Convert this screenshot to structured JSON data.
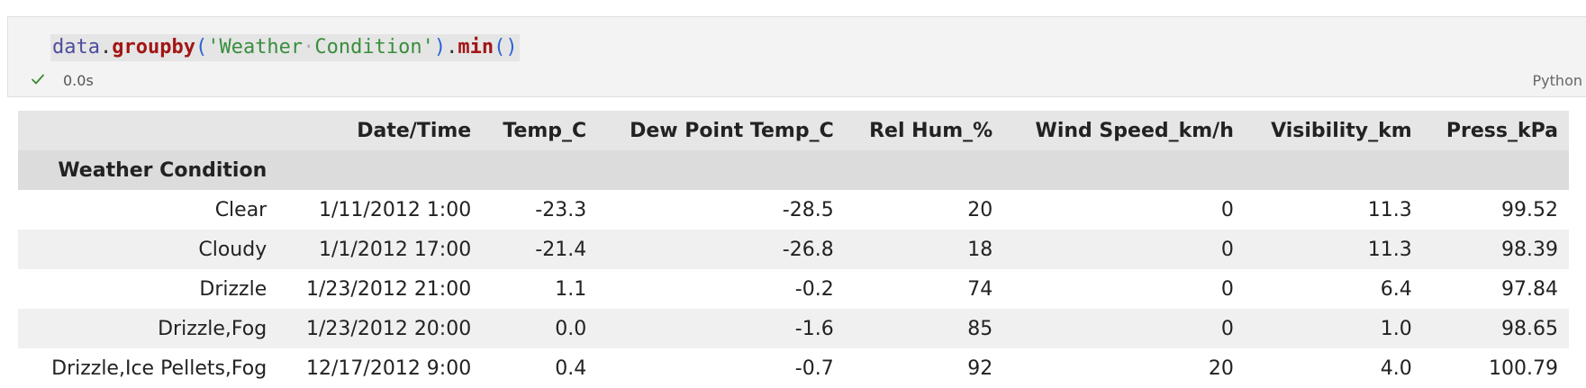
{
  "cell": {
    "code": {
      "var": "data",
      "dot1": ".",
      "method1": "groupby",
      "open1": "(",
      "string_open": "'",
      "string_word1": "Weather",
      "string_space": "·",
      "string_word2": "Condition",
      "string_close": "'",
      "close1": ")",
      "dot2": ".",
      "method2": "min",
      "parens2": "()"
    },
    "status": "success",
    "exec_time": "0.0s",
    "language": "Python"
  },
  "table": {
    "index_name": "Weather Condition",
    "columns": [
      "Date/Time",
      "Temp_C",
      "Dew Point Temp_C",
      "Rel Hum_%",
      "Wind Speed_km/h",
      "Visibility_km",
      "Press_kPa"
    ],
    "rows": [
      {
        "index": "Clear",
        "values": [
          "1/11/2012 1:00",
          "-23.3",
          "-28.5",
          "20",
          "0",
          "11.3",
          "99.52"
        ]
      },
      {
        "index": "Cloudy",
        "values": [
          "1/1/2012 17:00",
          "-21.4",
          "-26.8",
          "18",
          "0",
          "11.3",
          "98.39"
        ]
      },
      {
        "index": "Drizzle",
        "values": [
          "1/23/2012 21:00",
          "1.1",
          "-0.2",
          "74",
          "0",
          "6.4",
          "97.84"
        ]
      },
      {
        "index": "Drizzle,Fog",
        "values": [
          "1/23/2012 20:00",
          "0.0",
          "-1.6",
          "85",
          "0",
          "1.0",
          "98.65"
        ]
      },
      {
        "index": "Drizzle,Ice Pellets,Fog",
        "values": [
          "12/17/2012 9:00",
          "0.4",
          "-0.7",
          "92",
          "20",
          "4.0",
          "100.79"
        ]
      }
    ]
  }
}
